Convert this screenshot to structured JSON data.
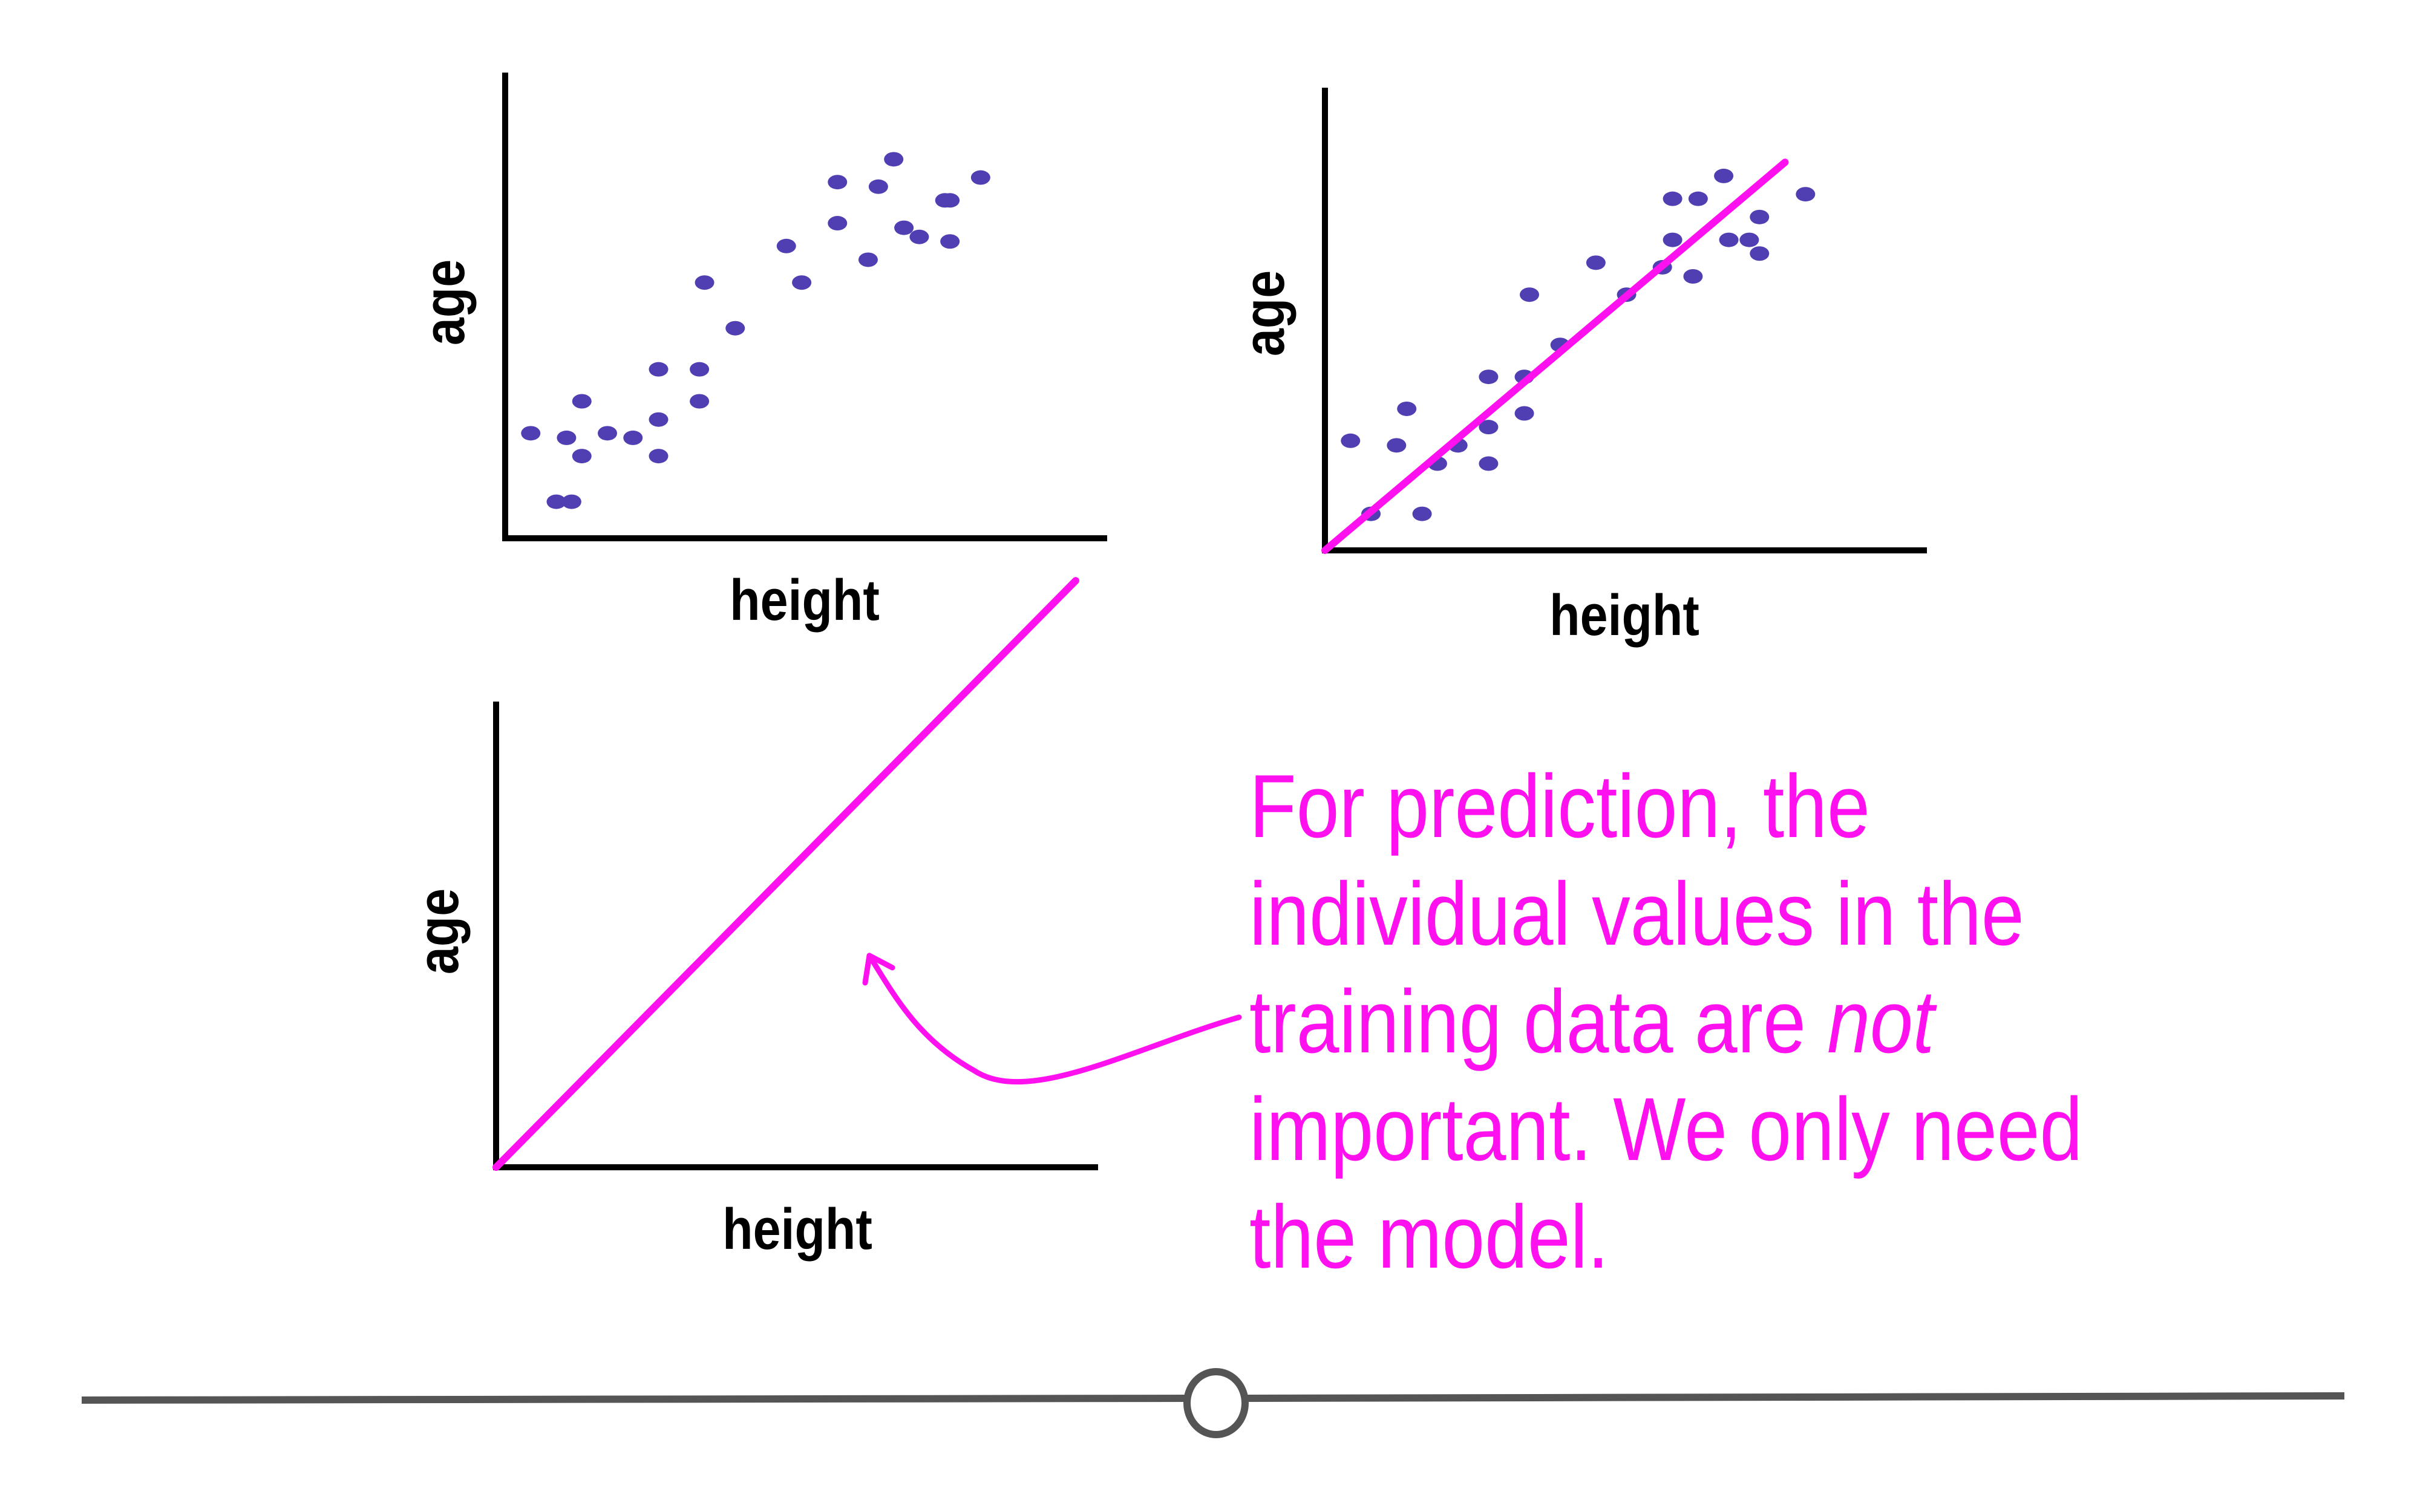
{
  "colors": {
    "points": "#4f3fb3",
    "model_line": "#ff10ee",
    "annotation": "#ff10ee",
    "axes": "#000000",
    "slider_track": "#555555"
  },
  "icons": {
    "slider_knob": "circle-handle-icon"
  },
  "charts": {
    "top_left": {
      "xlabel": "height",
      "ylabel": "age"
    },
    "top_right": {
      "xlabel": "height",
      "ylabel": "age"
    },
    "bottom": {
      "xlabel": "height",
      "ylabel": "age"
    }
  },
  "annotation": {
    "line1": "For prediction, the",
    "line2": "individual values in the",
    "line3_pre": "training data are ",
    "line3_em": "not",
    "line4": "important. We only need",
    "line5": "the model."
  },
  "chart_data": [
    {
      "type": "scatter",
      "xlabel": "height",
      "ylabel": "age",
      "series": [
        {
          "x": [
            0.5,
            1.0,
            1.2,
            1.3,
            1.5,
            1.5,
            2.0,
            2.5,
            3.0,
            3.0,
            3.0,
            3.8,
            3.8,
            3.9,
            4.5,
            5.5,
            5.8,
            6.5,
            6.5,
            7.1,
            7.3,
            7.6,
            7.8,
            8.1,
            8.6,
            8.7,
            8.7,
            9.3
          ],
          "y": [
            2.3,
            0.8,
            2.2,
            0.8,
            3.0,
            1.8,
            2.3,
            2.2,
            3.7,
            2.6,
            1.8,
            3.7,
            3.0,
            5.6,
            4.6,
            6.4,
            5.6,
            6.9,
            7.8,
            6.1,
            7.7,
            8.3,
            6.8,
            6.6,
            7.4,
            7.4,
            6.5,
            7.9
          ]
        }
      ]
    },
    {
      "type": "scatter",
      "xlabel": "height",
      "ylabel": "age",
      "series": [
        {
          "x": [
            0.5,
            0.9,
            1.4,
            1.6,
            1.9,
            2.2,
            2.6,
            3.2,
            3.2,
            3.2,
            3.9,
            3.9,
            4.0,
            4.6,
            5.3,
            5.9,
            6.6,
            6.8,
            6.8,
            7.2,
            7.3,
            7.8,
            7.9,
            8.3,
            8.5,
            8.5,
            9.4
          ],
          "y": [
            2.4,
            0.8,
            2.3,
            3.1,
            0.8,
            1.9,
            2.3,
            3.8,
            2.7,
            1.9,
            3.8,
            3.0,
            5.6,
            4.5,
            6.3,
            5.6,
            6.2,
            7.7,
            6.8,
            6.0,
            7.7,
            8.2,
            6.8,
            6.8,
            7.3,
            6.5,
            7.8
          ]
        },
        {
          "x": [
            0,
            9.0
          ],
          "y": [
            0,
            8.5
          ]
        }
      ]
    },
    {
      "type": "line",
      "xlabel": "height",
      "ylabel": "age",
      "series": [
        {
          "x": [
            0,
            8.5
          ],
          "y": [
            0,
            8.5
          ]
        }
      ]
    }
  ]
}
